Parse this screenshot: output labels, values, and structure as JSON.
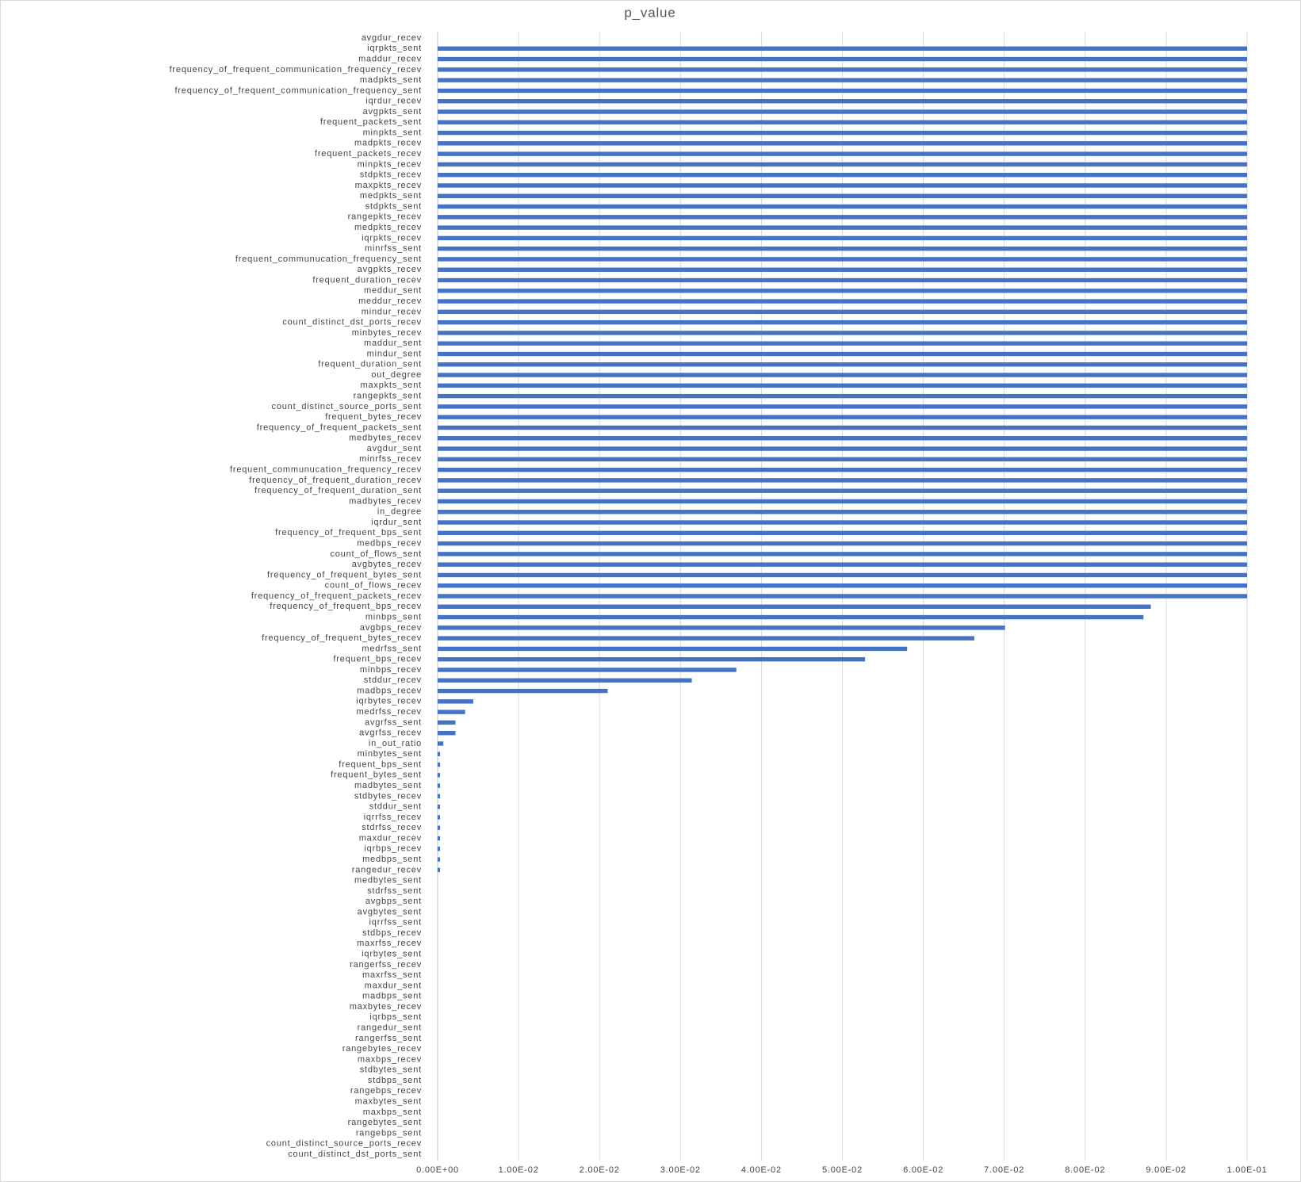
{
  "chart_data": {
    "type": "bar",
    "orientation": "horizontal",
    "title": "p_value",
    "color": "#4472c4",
    "grid": true,
    "categories": [
      "avgdur_recev",
      "iqrpkts_sent",
      "maddur_recev",
      "frequency_of_frequent_communication_frequency_recev",
      "madpkts_sent",
      "frequency_of_frequent_communication_frequency_sent",
      "iqrdur_recev",
      "avgpkts_sent",
      "frequent_packets_sent",
      "minpkts_sent",
      "madpkts_recev",
      "frequent_packets_recev",
      "minpkts_recev",
      "stdpkts_recev",
      "maxpkts_recev",
      "medpkts_sent",
      "stdpkts_sent",
      "rangepkts_recev",
      "medpkts_recev",
      "iqrpkts_recev",
      "minrfss_sent",
      "frequent_communucation_frequency_sent",
      "avgpkts_recev",
      "frequent_duration_recev",
      "meddur_sent",
      "meddur_recev",
      "mindur_recev",
      "count_distinct_dst_ports_recev",
      "minbytes_recev",
      "maddur_sent",
      "mindur_sent",
      "frequent_duration_sent",
      "out_degree",
      "maxpkts_sent",
      "rangepkts_sent",
      "count_distinct_source_ports_sent",
      "frequent_bytes_recev",
      "frequency_of_frequent_packets_sent",
      "medbytes_recev",
      "avgdur_sent",
      "minrfss_recev",
      "frequent_communucation_frequency_recev",
      "frequency_of_frequent_duration_recev",
      "frequency_of_frequent_duration_sent",
      "madbytes_recev",
      "in_degree",
      "iqrdur_sent",
      "frequency_of_frequent_bps_sent",
      "medbps_recev",
      "count_of_flows_sent",
      "avgbytes_recev",
      "frequency_of_frequent_bytes_sent",
      "count_of_flows_recev",
      "frequency_of_frequent_packets_recev",
      "frequency_of_frequent_bps_recev",
      "minbps_sent",
      "avgbps_recev",
      "frequency_of_frequent_bytes_recev",
      "medrfss_sent",
      "frequent_bps_recev",
      "minbps_recev",
      "stddur_recev",
      "madbps_recev",
      "iqrbytes_recev",
      "medrfss_recev",
      "avgrfss_sent",
      "avgrfss_recev",
      "in_out_ratio",
      "minbytes_sent",
      "frequent_bps_sent",
      "frequent_bytes_sent",
      "madbytes_sent",
      "stdbytes_recev",
      "stddur_sent",
      "iqrrfss_recev",
      "stdrfss_recev",
      "maxdur_recev",
      "iqrbps_recev",
      "medbps_sent",
      "rangedur_recev",
      "medbytes_sent",
      "stdrfss_sent",
      "avgbps_sent",
      "avgbytes_sent",
      "iqrrfss_sent",
      "stdbps_recev",
      "maxrfss_recev",
      "iqrbytes_sent",
      "rangerfss_recev",
      "maxrfss_sent",
      "maxdur_sent",
      "madbps_sent",
      "maxbytes_recev",
      "iqrbps_sent",
      "rangedur_sent",
      "rangerfss_sent",
      "rangebytes_recev",
      "maxbps_recev",
      "stdbytes_sent",
      "stdbps_sent",
      "rangebps_recev",
      "maxbytes_sent",
      "maxbps_sent",
      "rangebytes_sent",
      "rangebps_sent",
      "count_distinct_source_ports_recev",
      "count_distinct_dst_ports_sent"
    ],
    "values": [
      null,
      0.1,
      0.1,
      0.1,
      0.1,
      0.1,
      0.1,
      0.1,
      0.1,
      0.1,
      0.1,
      0.1,
      0.1,
      0.1,
      0.1,
      0.1,
      0.1,
      0.1,
      0.1,
      0.1,
      0.1,
      0.1,
      0.1,
      0.1,
      0.1,
      0.1,
      0.1,
      0.1,
      0.1,
      0.1,
      0.1,
      0.1,
      0.1,
      0.1,
      0.1,
      0.1,
      0.1,
      0.1,
      0.1,
      0.1,
      0.1,
      0.1,
      0.1,
      0.1,
      0.1,
      0.1,
      0.1,
      0.1,
      0.1,
      0.1,
      0.1,
      0.1,
      0.1,
      0.1,
      0.0881,
      0.0872,
      0.0701,
      0.0663,
      0.058,
      0.0528,
      0.0369,
      0.0314,
      0.021,
      0.0044,
      0.0034,
      0.0022,
      0.0022,
      0.0007,
      0.0003,
      0.0003,
      0.0003,
      0.0003,
      0.0003,
      0.0003,
      0.0003,
      0.0003,
      0.0003,
      0.0003,
      0.0003,
      0.0003,
      0,
      0,
      0,
      0,
      0,
      0,
      0,
      0,
      0,
      0,
      0,
      0,
      0,
      0,
      0,
      0,
      0,
      0,
      0,
      0,
      0,
      0,
      0,
      0,
      0,
      0,
      0
    ],
    "xlim": [
      0,
      0.1
    ],
    "xticks": [
      {
        "value": 0,
        "label": "0.00E+00"
      },
      {
        "value": 0.01,
        "label": "1.00E-02"
      },
      {
        "value": 0.02,
        "label": "2.00E-02"
      },
      {
        "value": 0.03,
        "label": "3.00E-02"
      },
      {
        "value": 0.04,
        "label": "4.00E-02"
      },
      {
        "value": 0.05,
        "label": "5.00E-02"
      },
      {
        "value": 0.06,
        "label": "6.00E-02"
      },
      {
        "value": 0.07,
        "label": "7.00E-02"
      },
      {
        "value": 0.08,
        "label": "8.00E-02"
      },
      {
        "value": 0.09,
        "label": "9.00E-02"
      },
      {
        "value": 0.1,
        "label": "1.00E-01"
      }
    ]
  }
}
